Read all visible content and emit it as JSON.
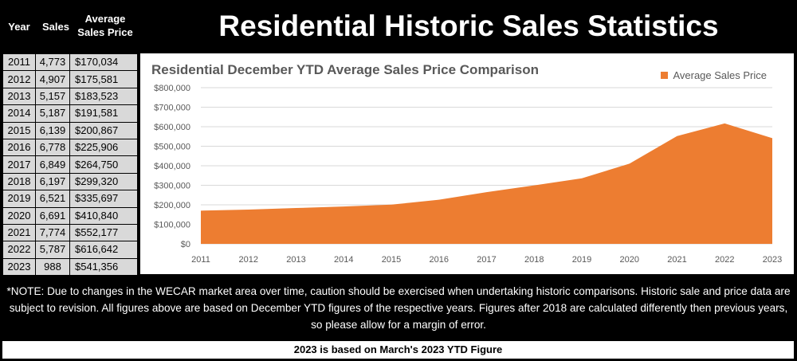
{
  "header": {
    "col_year": "Year",
    "col_sales": "Sales",
    "col_price": "Average Sales Price",
    "page_title": "Residential Historic Sales Statistics"
  },
  "table": {
    "rows": [
      {
        "year": "2011",
        "sales": "4,773",
        "price": "$170,034"
      },
      {
        "year": "2012",
        "sales": "4,907",
        "price": "$175,581"
      },
      {
        "year": "2013",
        "sales": "5,157",
        "price": "$183,523"
      },
      {
        "year": "2014",
        "sales": "5,187",
        "price": "$191,581"
      },
      {
        "year": "2015",
        "sales": "6,139",
        "price": "$200,867"
      },
      {
        "year": "2016",
        "sales": "6,778",
        "price": "$225,906"
      },
      {
        "year": "2017",
        "sales": "6,849",
        "price": "$264,750"
      },
      {
        "year": "2018",
        "sales": "6,197",
        "price": "$299,320"
      },
      {
        "year": "2019",
        "sales": "6,521",
        "price": "$335,697"
      },
      {
        "year": "2020",
        "sales": "6,691",
        "price": "$410,840"
      },
      {
        "year": "2021",
        "sales": "7,774",
        "price": "$552,177"
      },
      {
        "year": "2022",
        "sales": "5,787",
        "price": "$616,642"
      },
      {
        "year": "2023",
        "sales": "988",
        "price": "$541,356"
      }
    ]
  },
  "chart_data": {
    "type": "area",
    "title": "Residential December YTD Average Sales Price Comparison",
    "categories": [
      "2011",
      "2012",
      "2013",
      "2014",
      "2015",
      "2016",
      "2017",
      "2018",
      "2019",
      "2020",
      "2021",
      "2022",
      "2023"
    ],
    "series": [
      {
        "name": "Average Sales Price",
        "values": [
          170034,
          175581,
          183523,
          191581,
          200867,
          225906,
          264750,
          299320,
          335697,
          410840,
          552177,
          616642,
          541356
        ],
        "color": "#ed7d31"
      }
    ],
    "ylim": [
      0,
      800000
    ],
    "yticks": [
      "$0",
      "$100,000",
      "$200,000",
      "$300,000",
      "$400,000",
      "$500,000",
      "$600,000",
      "$700,000",
      "$800,000"
    ],
    "grid": true,
    "legend_position": "top-right"
  },
  "note": "*NOTE: Due to changes in the WECAR market area over time, caution should be exercised when undertaking historic comparisons. Historic sale and price data are subject to revision. All figures above are based on December YTD figures of the respective years. Figures after 2018 are calculated differently then previous years, so please allow for a margin of error.",
  "footer": "2023 is based on March's 2023 YTD Figure"
}
